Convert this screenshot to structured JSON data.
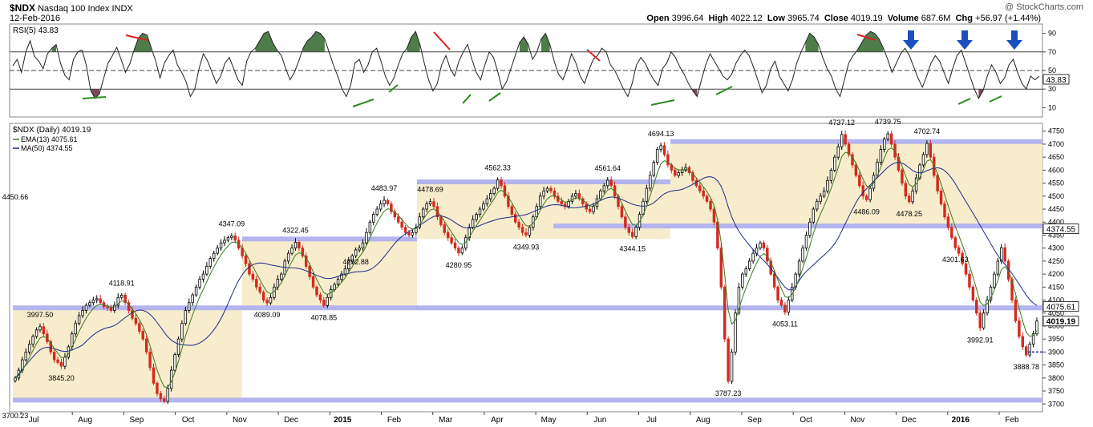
{
  "header": {
    "symbol": "$NDX",
    "name": "Nasdaq 100 Index",
    "exchange": "INDX",
    "date": "12-Feb-2016",
    "copyright": "@ StockCharts.com",
    "quote": {
      "open_label": "Open",
      "open": "3996.64",
      "high_label": "High",
      "high": "4022.12",
      "low_label": "Low",
      "low": "3965.74",
      "close_label": "Close",
      "close": "4019.19",
      "volume_label": "Volume",
      "volume": "687.6M",
      "chg_label": "Chg",
      "chg": "+56.97 (+1.44%)"
    }
  },
  "colors": {
    "band_fill": "#f7edcc",
    "band_line": "#b4b4ee",
    "up_bar": "#000000",
    "down_bar": "#d42a1f",
    "ema": "#3a7a1e",
    "ma": "#1b2a8a",
    "rsi_overbought": "#4f7d4a",
    "rsi_oversold": "#7c4a57",
    "red_trend": "#e02020",
    "green_trend": "#2a8a1e",
    "arrow": "#1b4fc0"
  },
  "chart_data": [
    {
      "type": "line",
      "title": "RSI(5) 43.83",
      "indicator": "RSI(5)",
      "last_value": "43.83",
      "y_ticks": [
        "90",
        "70",
        "50",
        "30",
        "10"
      ],
      "ylim": [
        0,
        100
      ],
      "levels": [
        70,
        50,
        30
      ],
      "rsi_series": [
        55,
        62,
        48,
        70,
        82,
        65,
        60,
        52,
        68,
        74,
        78,
        58,
        45,
        40,
        62,
        70,
        72,
        55,
        28,
        20,
        25,
        42,
        58,
        66,
        75,
        62,
        48,
        57,
        72,
        85,
        90,
        88,
        74,
        60,
        42,
        58,
        66,
        72,
        56,
        48,
        38,
        22,
        30,
        52,
        68,
        60,
        48,
        36,
        44,
        58,
        64,
        52,
        40,
        34,
        60,
        70,
        74,
        82,
        90,
        92,
        80,
        72,
        66,
        52,
        40,
        48,
        60,
        74,
        82,
        86,
        92,
        90,
        84,
        70,
        56,
        44,
        30,
        22,
        34,
        58,
        62,
        48,
        56,
        70,
        74,
        60,
        44,
        34,
        42,
        56,
        68,
        74,
        86,
        92,
        78,
        58,
        40,
        28,
        36,
        56,
        66,
        52,
        44,
        60,
        70,
        78,
        62,
        48,
        40,
        56,
        70,
        64,
        48,
        30,
        38,
        52,
        66,
        80,
        86,
        78,
        62,
        70,
        84,
        90,
        78,
        60,
        46,
        40,
        52,
        68,
        58,
        44,
        36,
        50,
        62,
        66,
        74,
        70,
        56,
        50,
        40,
        30,
        22,
        36,
        56,
        64,
        58,
        48,
        40,
        34,
        52,
        58,
        70,
        64,
        54,
        46,
        36,
        28,
        22,
        40,
        56,
        68,
        60,
        52,
        44,
        40,
        46,
        58,
        66,
        72,
        66,
        54,
        40,
        26,
        34,
        52,
        60,
        44,
        36,
        28,
        40,
        58,
        70,
        80,
        90,
        86,
        78,
        64,
        52,
        44,
        30,
        22,
        40,
        58,
        66,
        72,
        80,
        88,
        92,
        90,
        84,
        74,
        62,
        48,
        58,
        68,
        74,
        66,
        54,
        42,
        32,
        44,
        58,
        66,
        60,
        48,
        36,
        52,
        66,
        72,
        58,
        44,
        30,
        20,
        28,
        44,
        56,
        48,
        36,
        42,
        56,
        62,
        48,
        36,
        30,
        44,
        40,
        43.83
      ],
      "red_trend_lines": [
        [
          [
            157,
            44
          ],
          [
            183,
            50
          ]
        ],
        [
          [
            541,
            40
          ],
          [
            561,
            62
          ]
        ],
        [
          [
            732,
            62
          ],
          [
            748,
            76
          ]
        ],
        [
          [
            1069,
            43
          ],
          [
            1092,
            50
          ]
        ]
      ],
      "green_trend_lines": [
        [
          [
            103,
            123
          ],
          [
            132,
            121
          ]
        ],
        [
          [
            440,
            133
          ],
          [
            466,
            124
          ]
        ],
        [
          [
            485,
            115
          ],
          [
            496,
            106
          ]
        ],
        [
          [
            577,
            129
          ],
          [
            587,
            118
          ]
        ],
        [
          [
            610,
            126
          ],
          [
            624,
            116
          ]
        ],
        [
          [
            812,
            131
          ],
          [
            841,
            125
          ]
        ],
        [
          [
            893,
            118
          ],
          [
            913,
            108
          ]
        ],
        [
          [
            1195,
            130
          ],
          [
            1210,
            123
          ]
        ],
        [
          [
            1234,
            127
          ],
          [
            1249,
            120
          ]
        ]
      ],
      "arrows_x": [
        1136,
        1203,
        1265
      ]
    },
    {
      "type": "candlestick",
      "title": "$NDX (Daily) 4019.19",
      "series": [
        {
          "name": "$NDX (Daily)",
          "last": "4019.19",
          "color": "#000000"
        },
        {
          "name": "EMA(13)",
          "last": "4075.61",
          "color": "#3a7a1e"
        },
        {
          "name": "MA(50)",
          "last": "4374.55",
          "color": "#1b2a8a"
        }
      ],
      "ylim": [
        3670,
        4780
      ],
      "y_ticks": [
        3700,
        3750,
        3800,
        3850,
        3900,
        3950,
        4000,
        4050,
        4100,
        4150,
        4200,
        4250,
        4300,
        4350,
        4400,
        4450,
        4500,
        4550,
        4600,
        4650,
        4700,
        4750
      ],
      "x_ticks": [
        "Jul",
        "Aug",
        "Sep",
        "Oct",
        "Nov",
        "Dec",
        "2015",
        "Feb",
        "Mar",
        "Apr",
        "May",
        "Jun",
        "Jul",
        "Aug",
        "Sep",
        "Oct",
        "Nov",
        "Dec",
        "2016",
        "Feb"
      ],
      "bold_x_ticks": [
        "2015",
        "2016"
      ],
      "support_resistance_levels": [
        4710,
        4555,
        4385,
        4335,
        4070,
        3715
      ],
      "shaded_ranges": [
        {
          "y0": 3715,
          "y1": 4070
        },
        {
          "y0": 4070,
          "y1": 4335
        },
        {
          "y0": 4335,
          "y1": 4555
        },
        {
          "y0": 4385,
          "y1": 4710
        }
      ],
      "close_series": [
        3800,
        3830,
        3870,
        3900,
        3930,
        3960,
        3985,
        3997.5,
        3970,
        3940,
        3900,
        3870,
        3860,
        3845.2,
        3880,
        3920,
        3970,
        4010,
        4040,
        4060,
        4080,
        4090,
        4100,
        4105,
        4090,
        4075,
        4070,
        4060,
        4080,
        4110,
        4118.91,
        4090,
        4060,
        4030,
        4010,
        3980,
        3950,
        3900,
        3840,
        3780,
        3740,
        3720,
        3710,
        3760,
        3830,
        3890,
        3950,
        4010,
        4060,
        4090,
        4120,
        4150,
        4180,
        4200,
        4230,
        4260,
        4280,
        4300,
        4320,
        4330,
        4340,
        4347.09,
        4330,
        4300,
        4270,
        4240,
        4200,
        4180,
        4150,
        4130,
        4100,
        4089.09,
        4110,
        4150,
        4180,
        4200,
        4250,
        4280,
        4300,
        4322.45,
        4300,
        4270,
        4230,
        4190,
        4150,
        4120,
        4100,
        4078.85,
        4110,
        4140,
        4160,
        4180,
        4200,
        4220,
        4250,
        4270,
        4292.88,
        4300,
        4320,
        4360,
        4400,
        4430,
        4450,
        4470,
        4483.97,
        4470,
        4440,
        4420,
        4400,
        4380,
        4360,
        4350,
        4360,
        4380,
        4420,
        4450,
        4470,
        4478.69,
        4460,
        4420,
        4390,
        4360,
        4340,
        4320,
        4300,
        4280.95,
        4300,
        4340,
        4380,
        4410,
        4430,
        4450,
        4470,
        4490,
        4510,
        4530,
        4562.33,
        4540,
        4500,
        4460,
        4430,
        4400,
        4380,
        4360,
        4349.93,
        4380,
        4420,
        4460,
        4500,
        4520,
        4530,
        4520,
        4500,
        4480,
        4470,
        4460,
        4480,
        4500,
        4510,
        4490,
        4470,
        4450,
        4440,
        4460,
        4490,
        4520,
        4540,
        4561.64,
        4540,
        4500,
        4460,
        4420,
        4380,
        4360,
        4344.15,
        4380,
        4430,
        4480,
        4530,
        4580,
        4630,
        4680,
        4694.13,
        4660,
        4620,
        4600,
        4580,
        4590,
        4600,
        4610,
        4590,
        4560,
        4540,
        4520,
        4500,
        4480,
        4450,
        4400,
        4300,
        4150,
        3950,
        3787.23,
        3900,
        4050,
        4150,
        4200,
        4220,
        4250,
        4280,
        4300,
        4320,
        4300,
        4250,
        4200,
        4150,
        4100,
        4080,
        4053.11,
        4100,
        4150,
        4200,
        4250,
        4300,
        4350,
        4400,
        4450,
        4480,
        4500,
        4520,
        4560,
        4600,
        4650,
        4690,
        4737.12,
        4700,
        4660,
        4620,
        4580,
        4540,
        4500,
        4486.09,
        4530,
        4580,
        4630,
        4680,
        4720,
        4739.75,
        4700,
        4650,
        4600,
        4550,
        4500,
        4478.25,
        4520,
        4570,
        4620,
        4660,
        4702.74,
        4650,
        4580,
        4520,
        4470,
        4420,
        4380,
        4340,
        4301.63,
        4280,
        4240,
        4200,
        4150,
        4100,
        4050,
        3992.91,
        4050,
        4100,
        4150,
        4200,
        4250,
        4301.63,
        4250,
        4180,
        4100,
        4020,
        3960,
        3920,
        3888.78,
        3930,
        3970,
        4019.19
      ],
      "annotations": [
        {
          "text": "3997.50",
          "price": 3997.5
        },
        {
          "text": "3845.20",
          "price": 3845.2
        },
        {
          "text": "4118.91",
          "price": 4118.91
        },
        {
          "text": "3700.23",
          "price": 3700.23
        },
        {
          "text": "4347.09",
          "price": 4347.09
        },
        {
          "text": "4089.09",
          "price": 4089.09
        },
        {
          "text": "4322.45",
          "price": 4322.45
        },
        {
          "text": "4078.85",
          "price": 4078.85
        },
        {
          "text": "4292.88",
          "price": 4292.88
        },
        {
          "text": "4483.97",
          "price": 4483.97
        },
        {
          "text": "4478.69",
          "price": 4478.69
        },
        {
          "text": "4280.95",
          "price": 4280.95
        },
        {
          "text": "4562.33",
          "price": 4562.33
        },
        {
          "text": "4349.93",
          "price": 4349.93
        },
        {
          "text": "4561.64",
          "price": 4561.64
        },
        {
          "text": "4344.15",
          "price": 4344.15
        },
        {
          "text": "4694.13",
          "price": 4694.13
        },
        {
          "text": "3787.23",
          "price": 3787.23
        },
        {
          "text": "4450.66",
          "price": 4450.66
        },
        {
          "text": "4053.11",
          "price": 4053.11
        },
        {
          "text": "4737.12",
          "price": 4737.12
        },
        {
          "text": "4486.09",
          "price": 4486.09
        },
        {
          "text": "4739.75",
          "price": 4739.75
        },
        {
          "text": "4478.25",
          "price": 4478.25
        },
        {
          "text": "4702.74",
          "price": 4702.74
        },
        {
          "text": "4301.63",
          "price": 4301.63
        },
        {
          "text": "3992.91",
          "price": 3992.91
        },
        {
          "text": "3888.78",
          "price": 3888.78
        }
      ],
      "last_price_tags": [
        {
          "text": "4374.55",
          "price": 4374.55
        },
        {
          "text": "4075.61",
          "price": 4075.61
        },
        {
          "text": "4019.19",
          "price": 4019.19
        }
      ]
    }
  ]
}
